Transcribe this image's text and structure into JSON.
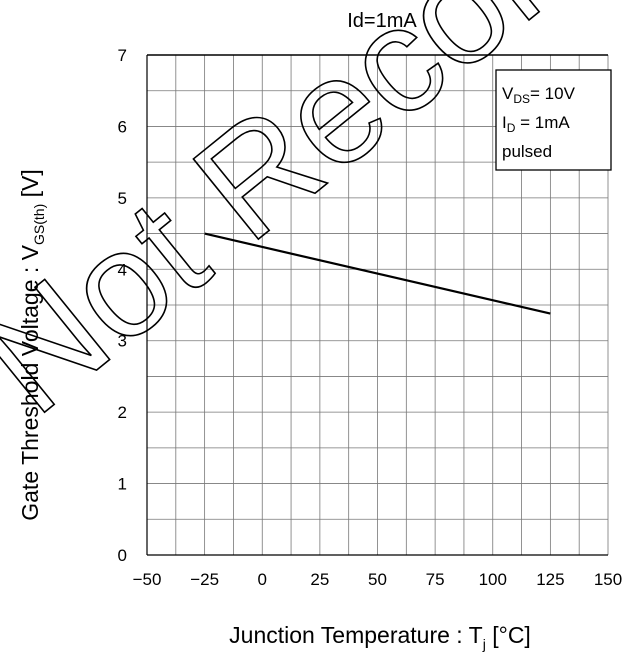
{
  "chart_data": {
    "type": "line",
    "title": "Id=1mA",
    "xlabel": "Junction Temperature : T",
    "xlabel_sub": "j",
    "xlabel_unit": " [°C]",
    "ylabel": "Gate Threshold Voltage : V",
    "ylabel_sub": "GS(th)",
    "ylabel_unit": " [V]",
    "xlim": [
      -50,
      150
    ],
    "ylim": [
      0,
      7
    ],
    "xticks": [
      "−50",
      "−25",
      "0",
      "25",
      "50",
      "75",
      "100",
      "125",
      "150"
    ],
    "yticks": [
      "0",
      "1",
      "2",
      "3",
      "4",
      "5",
      "6",
      "7"
    ],
    "grid": true,
    "series": [
      {
        "x": [
          -25,
          125
        ],
        "y": [
          4.5,
          3.38
        ]
      }
    ],
    "legend": {
      "placement": "top-right",
      "line1_main": "V",
      "line1_sub": "DS",
      "line1_rest": "= 10V",
      "line2_main": "I",
      "line2_sub": "D",
      "line2_rest": " = 1mA",
      "line3": "pulsed"
    }
  },
  "watermark": "Not Recommended for New"
}
